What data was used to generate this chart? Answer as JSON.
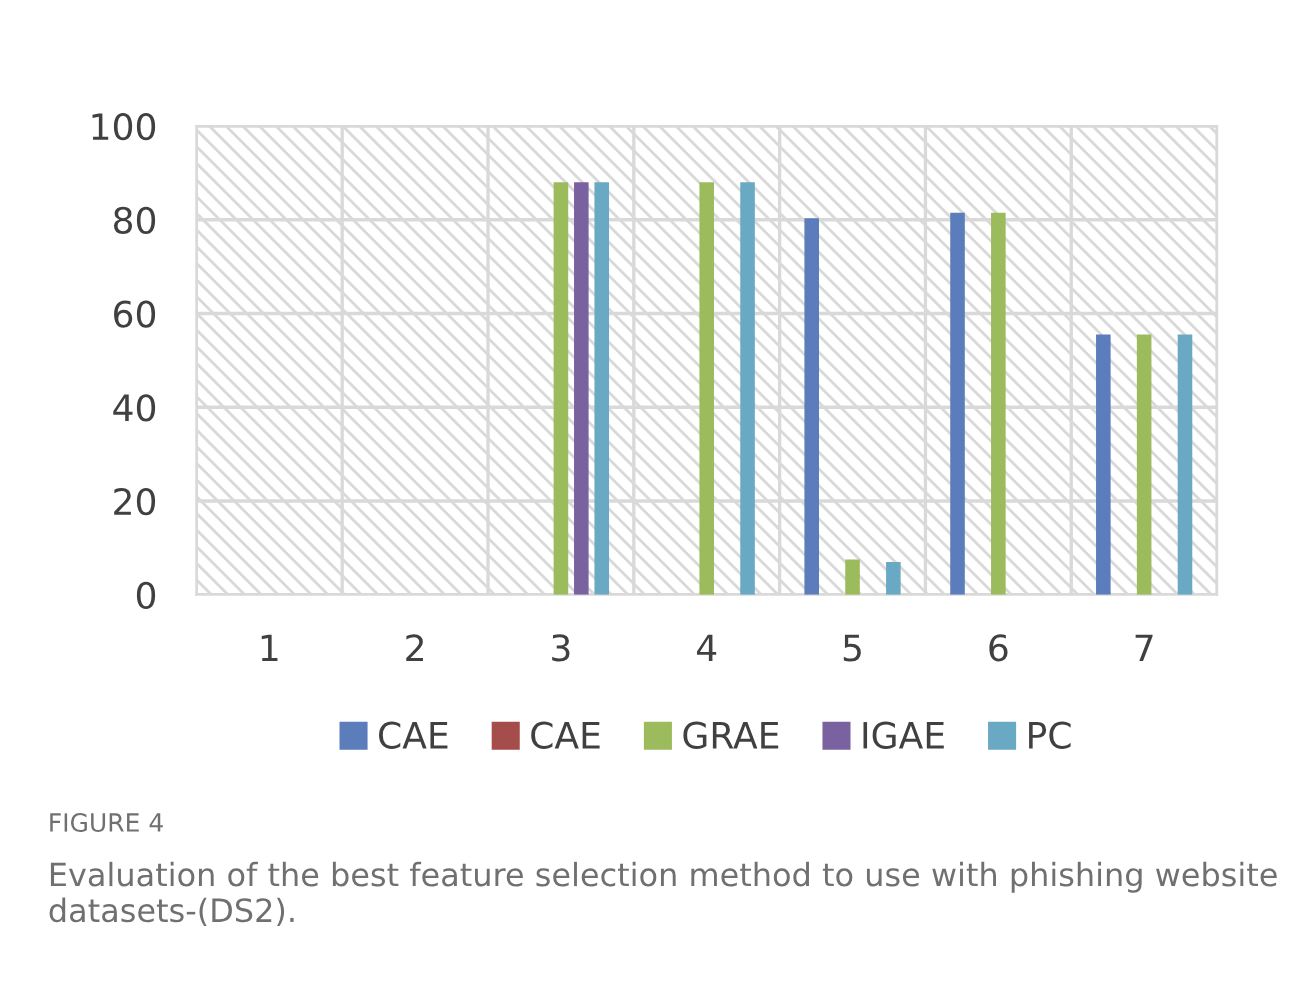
{
  "chart_data": {
    "type": "bar",
    "categories": [
      "1",
      "2",
      "3",
      "4",
      "5",
      "6",
      "7"
    ],
    "series": [
      {
        "name": "CAE",
        "color": "#5b7dbb",
        "values": [
          0,
          0,
          0,
          0,
          80.3,
          81.5,
          55.5
        ]
      },
      {
        "name": "CAE",
        "color": "#a44d4a",
        "values": [
          0,
          0,
          0,
          0,
          0,
          0,
          0
        ]
      },
      {
        "name": "GRAE",
        "color": "#9cbb5c",
        "values": [
          0,
          0,
          88,
          88,
          7.5,
          81.5,
          55.5
        ]
      },
      {
        "name": "IGAE",
        "color": "#7a62a0",
        "values": [
          0,
          0,
          88,
          0,
          0,
          0,
          0
        ]
      },
      {
        "name": "PC",
        "color": "#6aa9c4",
        "values": [
          0,
          0,
          88,
          88,
          7,
          0,
          55.5
        ]
      }
    ],
    "ylim": [
      0,
      100
    ],
    "yticks": [
      0,
      20,
      40,
      60,
      80,
      100
    ],
    "grid": true,
    "legend": "bottom",
    "annotations": [
      "FIGURE 4",
      "Evaluation of the best feature selection method to use with phishing website datasets-(DS2)."
    ]
  }
}
